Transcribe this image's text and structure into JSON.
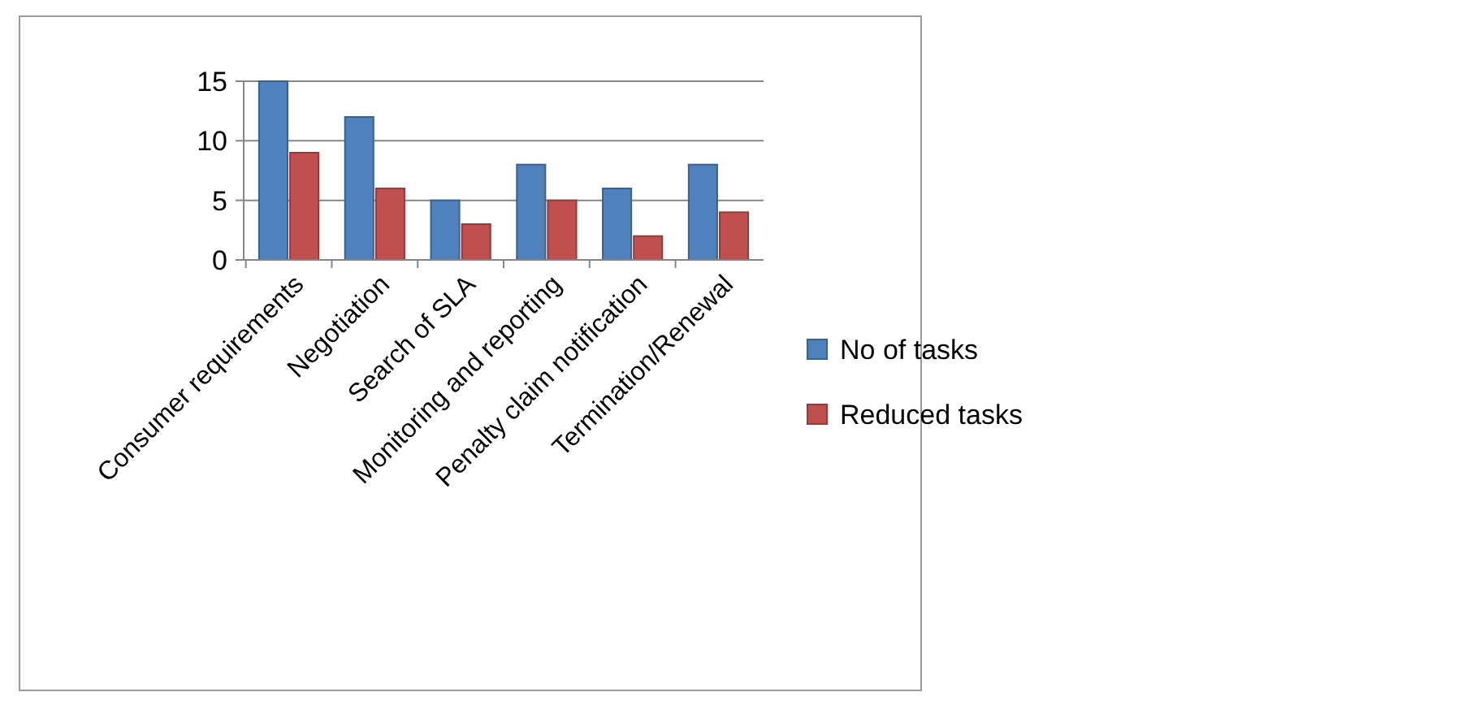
{
  "chart_data": {
    "type": "bar",
    "categories": [
      "Consumer requirements",
      "Negotiation",
      "Search of SLA",
      "Monitoring and reporting",
      "Penalty claim notification",
      "Termination/Renewal"
    ],
    "series": [
      {
        "name": "No of tasks",
        "color": "#4f81bd",
        "values": [
          15,
          12,
          5,
          8,
          6,
          8
        ]
      },
      {
        "name": "Reduced tasks",
        "color": "#c0504d",
        "values": [
          9,
          6,
          3,
          5,
          2,
          4
        ]
      }
    ],
    "ylim": [
      0,
      15
    ],
    "yticks": [
      0,
      5,
      10,
      15
    ],
    "grid": "y",
    "legend": "right"
  }
}
